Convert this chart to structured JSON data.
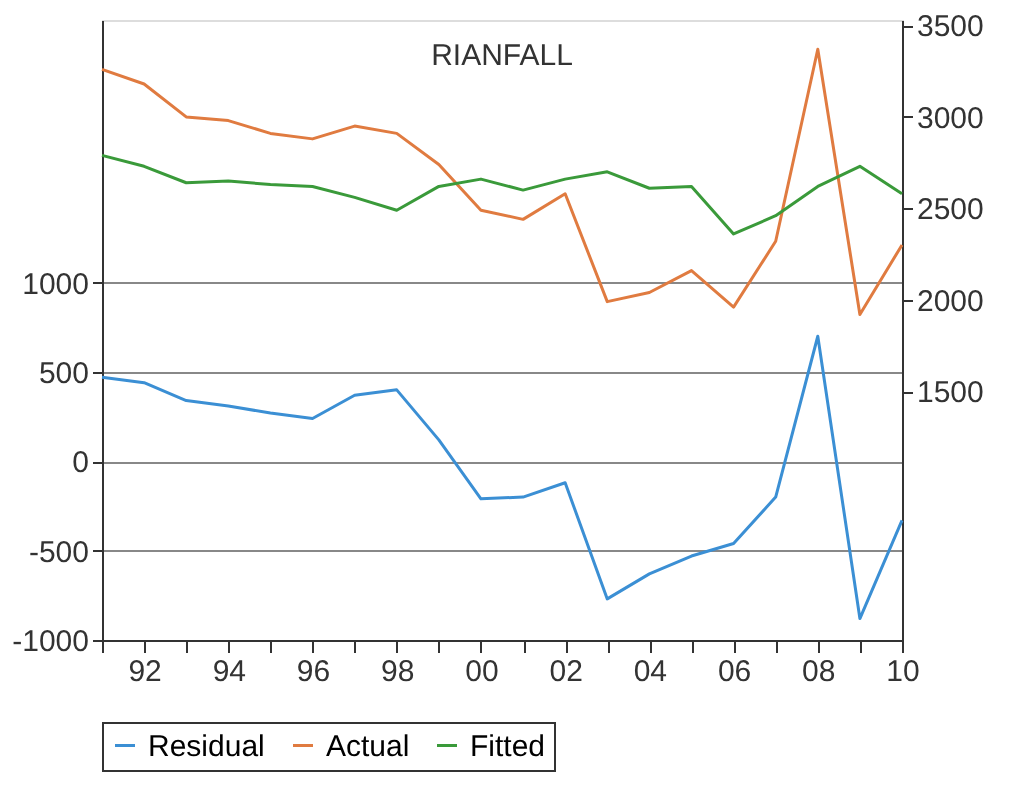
{
  "chart_data": {
    "type": "line",
    "title": "RIANFALL",
    "x": [
      1991,
      1992,
      1993,
      1994,
      1995,
      1996,
      1997,
      1998,
      1999,
      2000,
      2001,
      2002,
      2003,
      2004,
      2005,
      2006,
      2007,
      2008,
      2009,
      2010
    ],
    "series": [
      {
        "name": "Residual",
        "color": "#3b8fd4",
        "values": [
          470,
          440,
          340,
          310,
          270,
          240,
          370,
          400,
          120,
          -210,
          -200,
          -120,
          -770,
          -630,
          -530,
          -460,
          -200,
          700,
          -880,
          -330
        ]
      },
      {
        "name": "Actual",
        "color": "#e07b40",
        "axis": "y2",
        "values": [
          3260,
          3180,
          3000,
          2980,
          2910,
          2880,
          2950,
          2910,
          2740,
          2490,
          2440,
          2580,
          1990,
          2040,
          2160,
          1960,
          2320,
          3370,
          1920,
          2300
        ]
      },
      {
        "name": "Fitted",
        "color": "#3a9a3a",
        "axis": "y2",
        "values": [
          2790,
          2730,
          2640,
          2650,
          2630,
          2620,
          2560,
          2490,
          2620,
          2660,
          2600,
          2660,
          2700,
          2610,
          2620,
          2360,
          2460,
          2620,
          2730,
          2580
        ]
      }
    ],
    "xlim": [
      1991,
      2010
    ],
    "xticks": [
      {
        "value": 1991,
        "label": null
      },
      {
        "value": 1992,
        "label": "92"
      },
      {
        "value": 1993,
        "label": null
      },
      {
        "value": 1994,
        "label": "94"
      },
      {
        "value": 1995,
        "label": null
      },
      {
        "value": 1996,
        "label": "96"
      },
      {
        "value": 1997,
        "label": null
      },
      {
        "value": 1998,
        "label": "98"
      },
      {
        "value": 1999,
        "label": null
      },
      {
        "value": 2000,
        "label": "00"
      },
      {
        "value": 2001,
        "label": null
      },
      {
        "value": 2002,
        "label": "02"
      },
      {
        "value": 2003,
        "label": null
      },
      {
        "value": 2004,
        "label": "04"
      },
      {
        "value": 2005,
        "label": null
      },
      {
        "value": 2006,
        "label": "06"
      },
      {
        "value": 2007,
        "label": null
      },
      {
        "value": 2008,
        "label": "08"
      },
      {
        "value": 2009,
        "label": null
      },
      {
        "value": 2010,
        "label": "10"
      }
    ],
    "ylim": [
      -1000,
      2470
    ],
    "yticks": [
      -1000,
      -500,
      0,
      500,
      1000
    ],
    "y2lim": [
      140,
      3530
    ],
    "y2ticks": [
      1500,
      2000,
      2500,
      3000,
      3500
    ],
    "grid": "y",
    "legend": "bottom",
    "line_style": "solid",
    "marker": "none"
  }
}
